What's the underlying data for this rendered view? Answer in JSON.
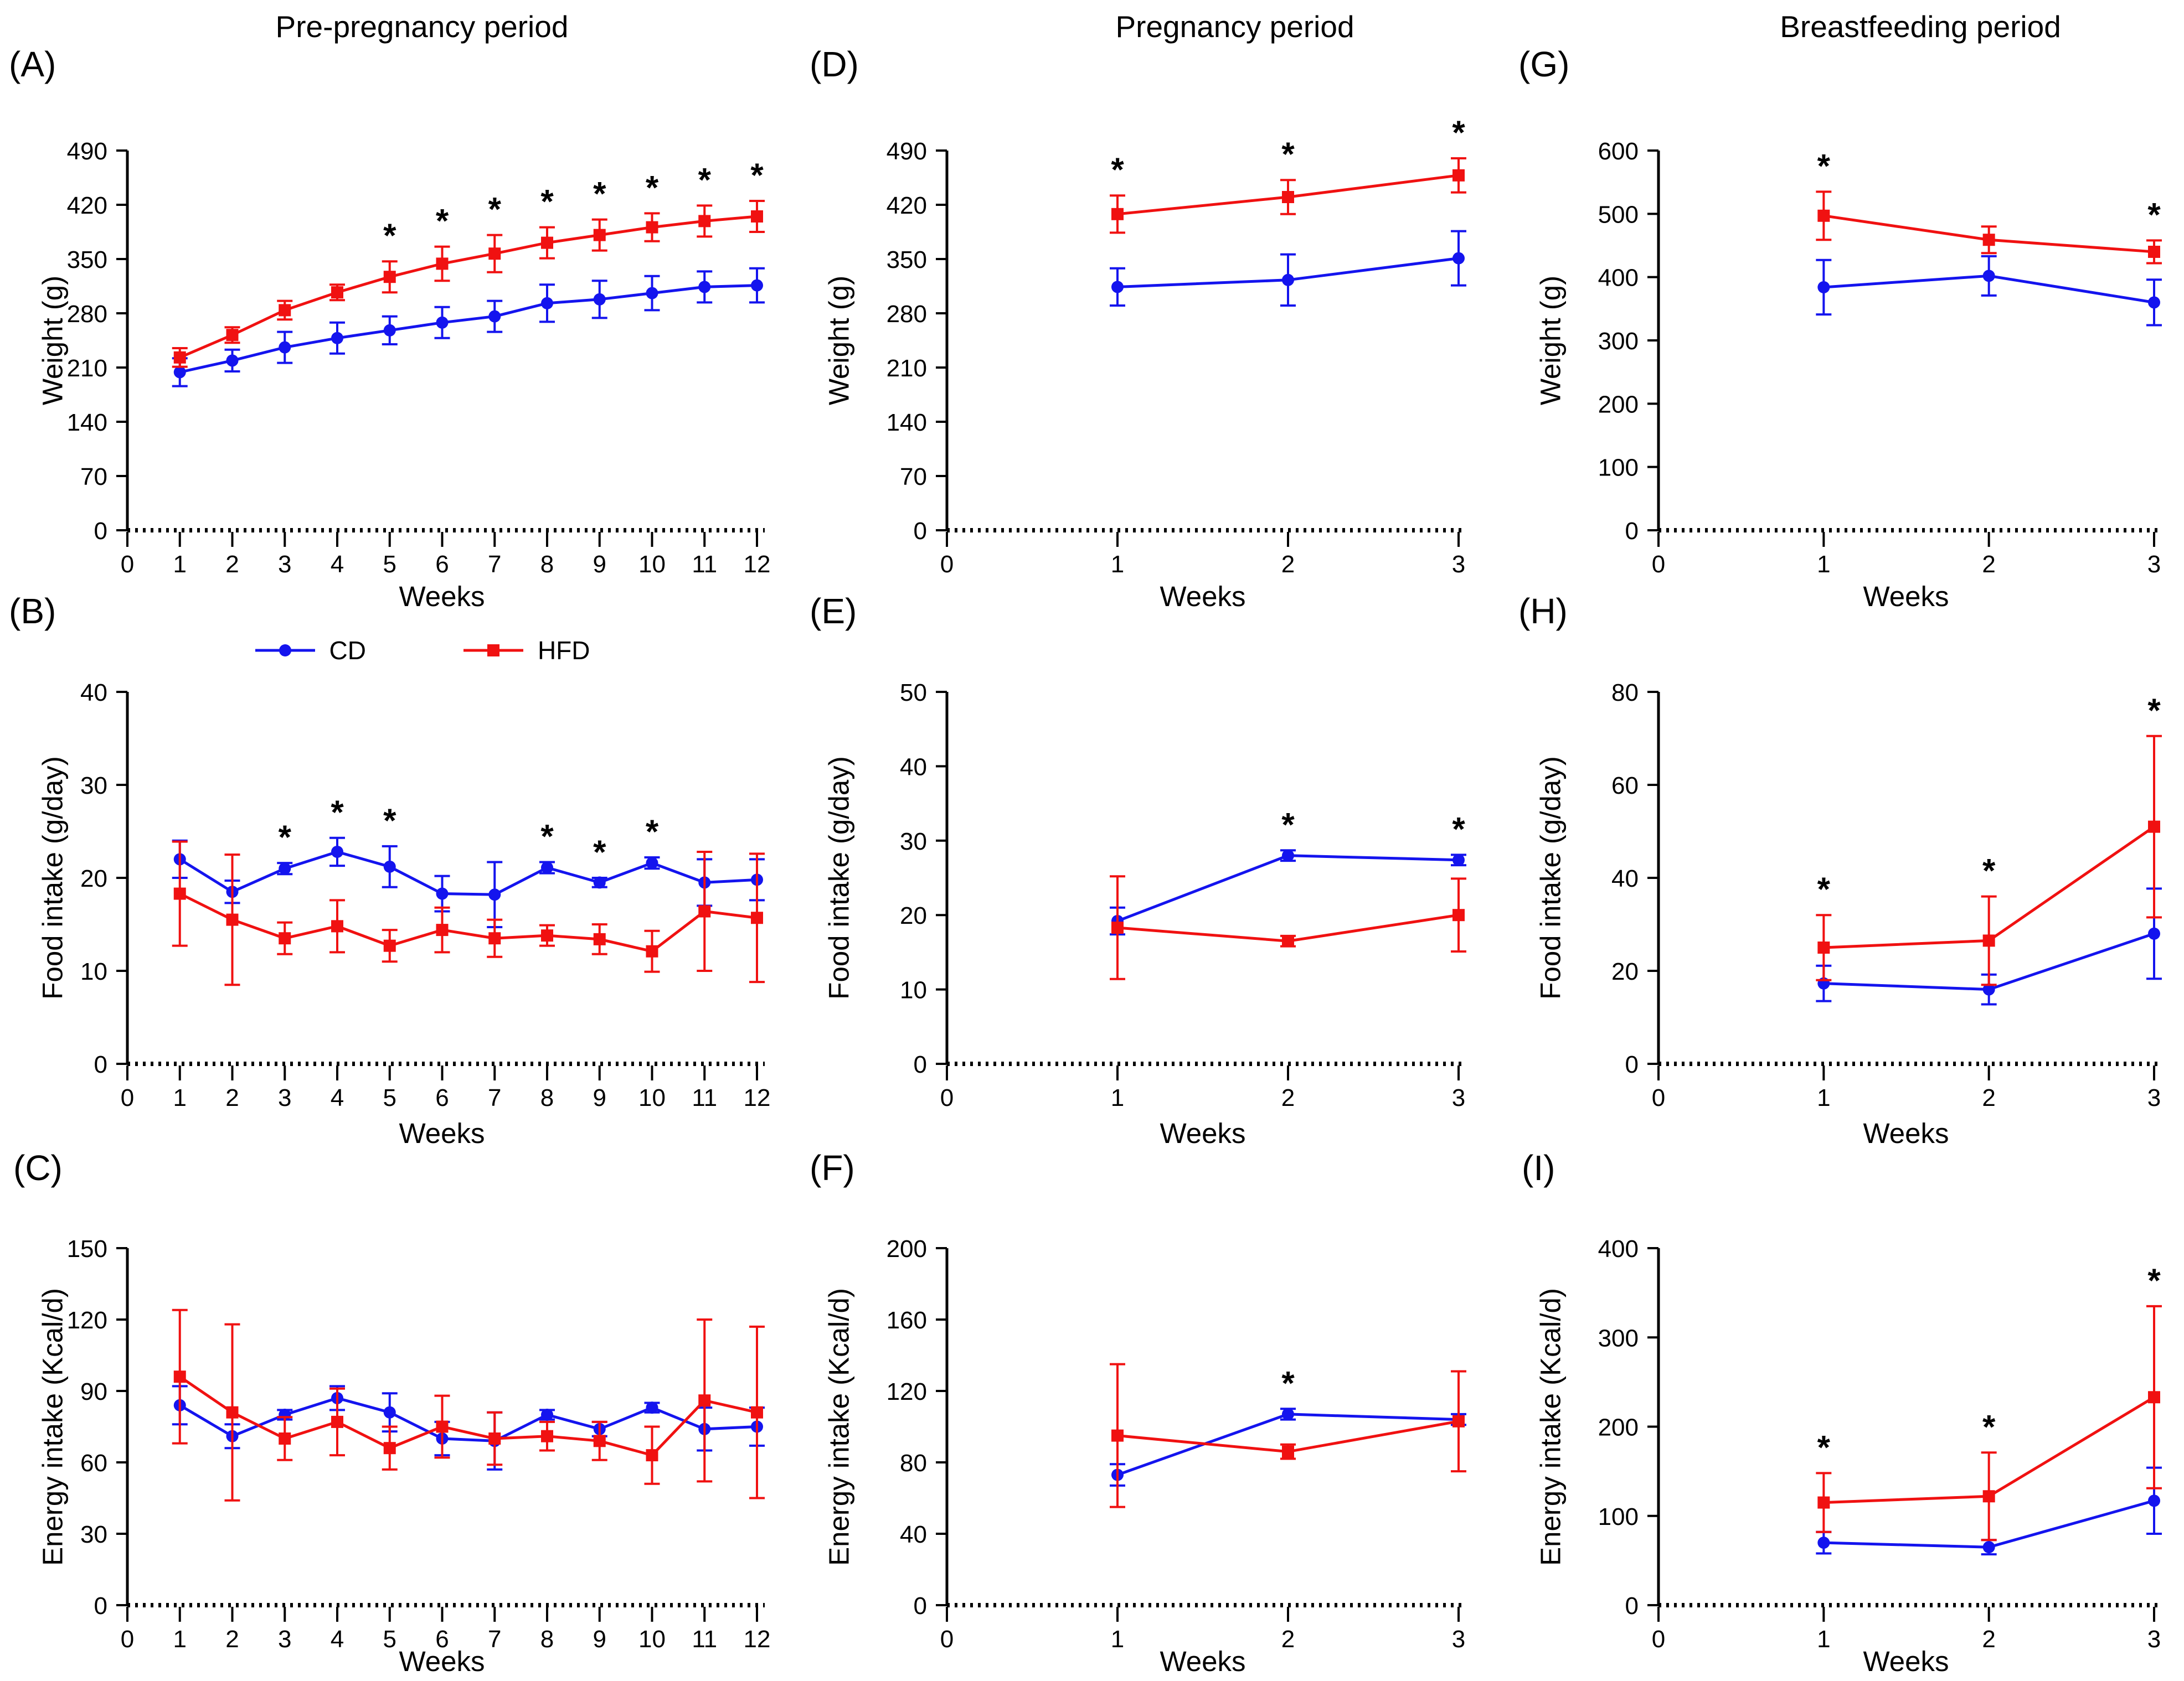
{
  "figure": {
    "series_styles": {
      "CD": {
        "color": "#1414ee",
        "marker": "circle"
      },
      "HFD": {
        "color": "#f01111",
        "marker": "square"
      }
    },
    "legend": {
      "items": [
        {
          "label": "CD",
          "series": "CD"
        },
        {
          "label": "HFD",
          "series": "HFD"
        }
      ]
    },
    "significance_symbol": "*",
    "axis_color": "#000000",
    "background": "#ffffff"
  },
  "chart_data": [
    {
      "id": "A",
      "panel_label": "(A)",
      "title": "Pre-pregnancy period",
      "type": "line",
      "ylabel": "Weight (g)",
      "xlabel": "Weeks",
      "ylim": [
        0,
        490
      ],
      "yticks": [
        0,
        70,
        140,
        210,
        280,
        350,
        420,
        490
      ],
      "xlim": [
        0,
        12
      ],
      "xticks": [
        0,
        1,
        2,
        3,
        4,
        5,
        6,
        7,
        8,
        9,
        10,
        11,
        12
      ],
      "x": [
        1,
        2,
        3,
        4,
        5,
        6,
        7,
        8,
        9,
        10,
        11,
        12
      ],
      "series": [
        {
          "name": "CD",
          "values": [
            204,
            219,
            236,
            248,
            258,
            268,
            276,
            293,
            298,
            306,
            314,
            316
          ],
          "errors": [
            18,
            14,
            20,
            20,
            18,
            20,
            20,
            24,
            24,
            22,
            20,
            22
          ]
        },
        {
          "name": "HFD",
          "values": [
            223,
            252,
            284,
            307,
            327,
            344,
            357,
            371,
            381,
            391,
            399,
            405
          ],
          "errors": [
            12,
            10,
            12,
            10,
            20,
            22,
            24,
            20,
            20,
            18,
            20,
            20
          ]
        }
      ],
      "sig": {
        "series": "HFD",
        "weeks": [
          5,
          6,
          7,
          8,
          9,
          10,
          11,
          12
        ]
      }
    },
    {
      "id": "B",
      "panel_label": "(B)",
      "title": "",
      "type": "line",
      "ylabel": "Food intake (g/day)",
      "xlabel": "Weeks",
      "ylim": [
        0,
        40
      ],
      "yticks": [
        0,
        10,
        20,
        30,
        40
      ],
      "xlim": [
        0,
        12
      ],
      "xticks": [
        0,
        1,
        2,
        3,
        4,
        5,
        6,
        7,
        8,
        9,
        10,
        11,
        12
      ],
      "x": [
        1,
        2,
        3,
        4,
        5,
        6,
        7,
        8,
        9,
        10,
        11,
        12
      ],
      "series": [
        {
          "name": "CD",
          "values": [
            22,
            18.5,
            21,
            22.8,
            21.2,
            18.3,
            18.2,
            21.1,
            19.5,
            21.6,
            19.5,
            19.8
          ],
          "errors": [
            2,
            1.2,
            0.6,
            1.5,
            2.2,
            1.9,
            3.5,
            0.6,
            0.5,
            0.6,
            2.5,
            2.2
          ]
        },
        {
          "name": "HFD",
          "values": [
            18.3,
            15.5,
            13.5,
            14.8,
            12.7,
            14.4,
            13.5,
            13.8,
            13.4,
            12.1,
            16.4,
            15.7
          ],
          "errors": [
            5.6,
            7,
            1.7,
            2.8,
            1.7,
            2.4,
            2,
            1.1,
            1.6,
            2.2,
            6.4,
            6.9
          ]
        }
      ],
      "sig": {
        "series": "CD",
        "weeks": [
          3,
          4,
          5,
          8,
          9,
          10
        ]
      }
    },
    {
      "id": "C",
      "panel_label": "(C)",
      "title": "",
      "type": "line",
      "ylabel": "Energy intake (Kcal/d)",
      "xlabel": "Weeks",
      "ylim": [
        0,
        150
      ],
      "yticks": [
        0,
        30,
        60,
        90,
        120,
        150
      ],
      "xlim": [
        0,
        12
      ],
      "xticks": [
        0,
        1,
        2,
        3,
        4,
        5,
        6,
        7,
        8,
        9,
        10,
        11,
        12
      ],
      "x": [
        1,
        2,
        3,
        4,
        5,
        6,
        7,
        8,
        9,
        10,
        11,
        12
      ],
      "series": [
        {
          "name": "CD",
          "values": [
            84,
            71,
            80,
            87,
            81,
            70,
            69,
            80,
            74,
            83,
            74,
            75
          ],
          "errors": [
            8,
            5,
            2,
            5,
            8,
            7,
            12,
            2,
            3,
            2,
            9,
            8
          ]
        },
        {
          "name": "HFD",
          "values": [
            96,
            81,
            70,
            77,
            66,
            75,
            70,
            71,
            69,
            63,
            86,
            81
          ],
          "errors": [
            28,
            37,
            9,
            14,
            9,
            13,
            11,
            6,
            8,
            12,
            34,
            36
          ]
        }
      ],
      "sig": {
        "series": "",
        "weeks": []
      }
    },
    {
      "id": "D",
      "panel_label": "(D)",
      "title": "Pregnancy period",
      "type": "line",
      "ylabel": "Weight (g)",
      "xlabel": "Weeks",
      "ylim": [
        0,
        490
      ],
      "yticks": [
        0,
        70,
        140,
        210,
        280,
        350,
        420,
        490
      ],
      "xlim": [
        0,
        3
      ],
      "xticks": [
        0,
        1,
        2,
        3
      ],
      "x": [
        1,
        2,
        3
      ],
      "series": [
        {
          "name": "CD",
          "values": [
            314,
            323,
            351
          ],
          "errors": [
            24,
            33,
            35
          ]
        },
        {
          "name": "HFD",
          "values": [
            408,
            430,
            458
          ],
          "errors": [
            24,
            22,
            22
          ]
        }
      ],
      "sig": {
        "series": "HFD",
        "weeks": [
          1,
          2,
          3
        ]
      }
    },
    {
      "id": "E",
      "panel_label": "(E)",
      "title": "",
      "type": "line",
      "ylabel": "Food intake (g/day)",
      "xlabel": "Weeks",
      "ylim": [
        0,
        50
      ],
      "yticks": [
        0,
        10,
        20,
        30,
        40,
        50
      ],
      "xlim": [
        0,
        3
      ],
      "xticks": [
        0,
        1,
        2,
        3
      ],
      "x": [
        1,
        2,
        3
      ],
      "series": [
        {
          "name": "CD",
          "values": [
            19.2,
            28,
            27.4
          ],
          "errors": [
            1.8,
            0.7,
            0.7
          ]
        },
        {
          "name": "HFD",
          "values": [
            18.3,
            16.5,
            20
          ],
          "errors": [
            6.9,
            0.7,
            4.9
          ]
        }
      ],
      "sig": {
        "series": "CD",
        "weeks": [
          2,
          3
        ]
      }
    },
    {
      "id": "F",
      "panel_label": "(F)",
      "title": "",
      "type": "line",
      "ylabel": "Energy intake (Kcal/d)",
      "xlabel": "Weeks",
      "ylim": [
        0,
        200
      ],
      "yticks": [
        0,
        40,
        80,
        120,
        160,
        200
      ],
      "xlim": [
        0,
        3
      ],
      "xticks": [
        0,
        1,
        2,
        3
      ],
      "x": [
        1,
        2,
        3
      ],
      "series": [
        {
          "name": "CD",
          "values": [
            73,
            107,
            104
          ],
          "errors": [
            6,
            3,
            3
          ]
        },
        {
          "name": "HFD",
          "values": [
            95,
            86,
            103
          ],
          "errors": [
            40,
            4,
            28
          ]
        }
      ],
      "sig": {
        "series": "CD",
        "weeks": [
          2
        ]
      }
    },
    {
      "id": "G",
      "panel_label": "(G)",
      "title": "Breastfeeding period",
      "type": "line",
      "ylabel": "Weight (g)",
      "xlabel": "Weeks",
      "ylim": [
        0,
        600
      ],
      "yticks": [
        0,
        100,
        200,
        300,
        400,
        500,
        600
      ],
      "xlim": [
        0,
        3
      ],
      "xticks": [
        0,
        1,
        2,
        3
      ],
      "x": [
        1,
        2,
        3
      ],
      "series": [
        {
          "name": "CD",
          "values": [
            384,
            402,
            360
          ],
          "errors": [
            43,
            31,
            36
          ]
        },
        {
          "name": "HFD",
          "values": [
            497,
            459,
            440
          ],
          "errors": [
            38,
            21,
            18
          ]
        }
      ],
      "sig": {
        "series": "HFD",
        "weeks": [
          1,
          3
        ]
      }
    },
    {
      "id": "H",
      "panel_label": "(H)",
      "title": "",
      "type": "line",
      "ylabel": "Food intake (g/day)",
      "xlabel": "Weeks",
      "ylim": [
        0,
        80
      ],
      "yticks": [
        0,
        20,
        40,
        60,
        80
      ],
      "xlim": [
        0,
        3
      ],
      "xticks": [
        0,
        1,
        2,
        3
      ],
      "x": [
        1,
        2,
        3
      ],
      "series": [
        {
          "name": "CD",
          "values": [
            17.3,
            16,
            28
          ],
          "errors": [
            3.8,
            3.2,
            9.7
          ]
        },
        {
          "name": "HFD",
          "values": [
            25,
            26.5,
            51
          ],
          "errors": [
            7,
            9.5,
            19.5
          ]
        }
      ],
      "sig": {
        "series": "HFD",
        "weeks": [
          1,
          2,
          3
        ]
      }
    },
    {
      "id": "I",
      "panel_label": "(I)",
      "title": "",
      "type": "line",
      "ylabel": "Energy intake (Kcal/d)",
      "xlabel": "Weeks",
      "ylim": [
        0,
        400
      ],
      "yticks": [
        0,
        100,
        200,
        300,
        400
      ],
      "xlim": [
        0,
        3
      ],
      "xticks": [
        0,
        1,
        2,
        3
      ],
      "x": [
        1,
        2,
        3
      ],
      "series": [
        {
          "name": "CD",
          "values": [
            70,
            65,
            117
          ],
          "errors": [
            12,
            8,
            37
          ]
        },
        {
          "name": "HFD",
          "values": [
            115,
            122,
            233
          ],
          "errors": [
            33,
            49,
            102
          ]
        }
      ],
      "sig": {
        "series": "HFD",
        "weeks": [
          1,
          2,
          3
        ]
      }
    }
  ]
}
